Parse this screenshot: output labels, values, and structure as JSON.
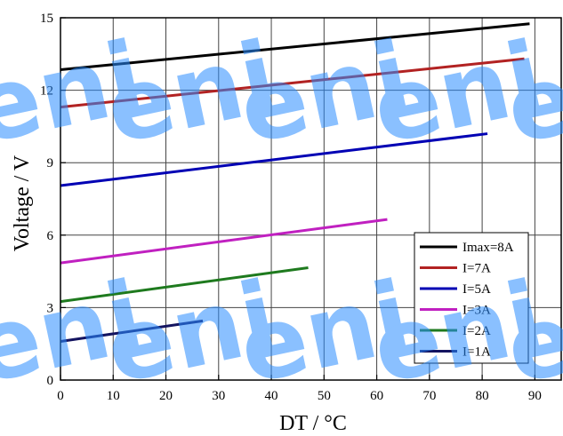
{
  "chart_data": {
    "type": "line",
    "title": "",
    "xlabel": "DT / °C",
    "ylabel": "Voltage / V",
    "xlim": [
      0,
      95
    ],
    "ylim": [
      0,
      15
    ],
    "xticks": [
      0,
      10,
      20,
      30,
      40,
      50,
      60,
      70,
      80,
      90
    ],
    "yticks": [
      0,
      3,
      6,
      9,
      12,
      15
    ],
    "xtick_labels": [
      "0",
      "10",
      "20",
      "30",
      "40",
      "50",
      "60",
      "70",
      "80",
      "90"
    ],
    "ytick_labels": [
      "0",
      "3",
      "6",
      "9",
      "12",
      "15"
    ],
    "grid": true,
    "legend_position": "bottom-right",
    "series": [
      {
        "name": "Imax=8A",
        "color": "#000000",
        "x": [
          0,
          89
        ],
        "y": [
          12.85,
          14.75
        ]
      },
      {
        "name": "I=7A",
        "color": "#b22222",
        "x": [
          0,
          88
        ],
        "y": [
          11.3,
          13.3
        ]
      },
      {
        "name": "I=5A",
        "color": "#0000b4",
        "x": [
          0,
          81
        ],
        "y": [
          8.05,
          10.2
        ]
      },
      {
        "name": "I=3A",
        "color": "#c020c0",
        "x": [
          0,
          62
        ],
        "y": [
          4.85,
          6.65
        ]
      },
      {
        "name": "I=2A",
        "color": "#1e7a1e",
        "x": [
          0,
          47
        ],
        "y": [
          3.25,
          4.65
        ]
      },
      {
        "name": "I=1A",
        "color": "#141460",
        "x": [
          0,
          27
        ],
        "y": [
          1.6,
          2.45
        ]
      }
    ]
  },
  "watermark": {
    "text": "eni",
    "color": "#2a8cff",
    "icon": "watermark-logo"
  }
}
